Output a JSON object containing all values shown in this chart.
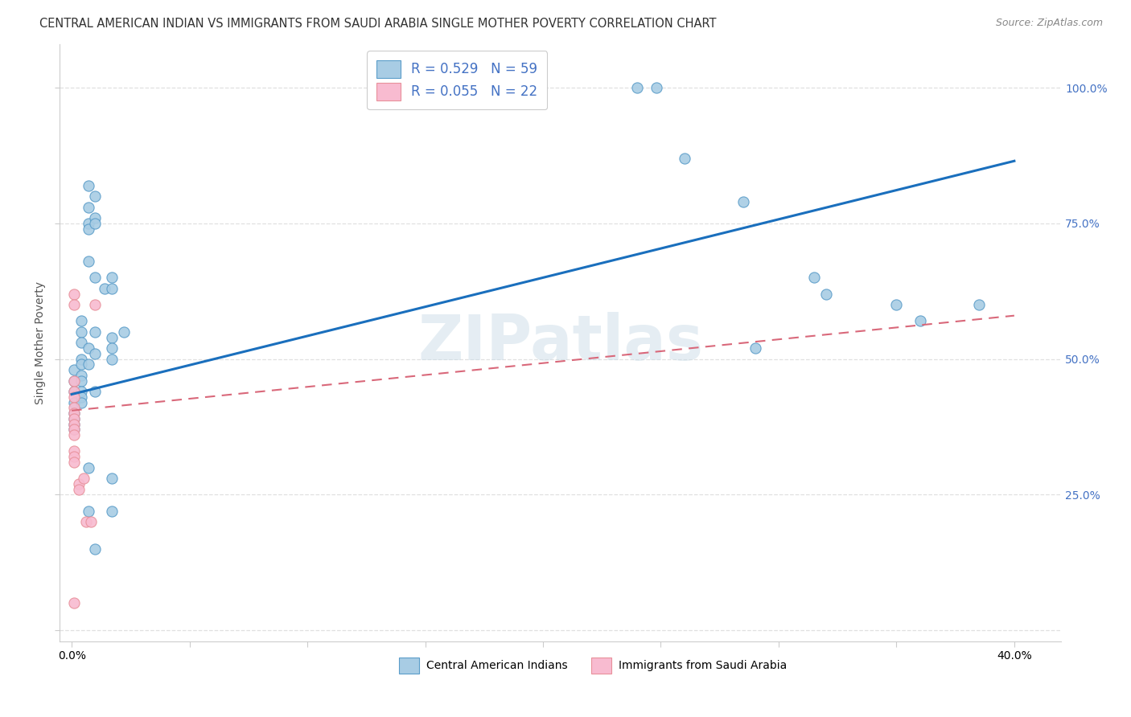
{
  "title": "CENTRAL AMERICAN INDIAN VS IMMIGRANTS FROM SAUDI ARABIA SINGLE MOTHER POVERTY CORRELATION CHART",
  "source": "Source: ZipAtlas.com",
  "ylabel": "Single Mother Poverty",
  "ylabel_right_ticks": [
    "100.0%",
    "75.0%",
    "50.0%",
    "25.0%"
  ],
  "ylabel_right_vals": [
    1.0,
    0.75,
    0.5,
    0.25
  ],
  "watermark": "ZIPatlas",
  "legend_r1": "R = 0.529",
  "legend_n1": "N = 59",
  "legend_r2": "R = 0.055",
  "legend_n2": "N = 22",
  "label_blue": "Central American Indians",
  "label_pink": "Immigrants from Saudi Arabia",
  "blue_color": "#a8cce4",
  "pink_color": "#f8bbd0",
  "blue_edge_color": "#5b9dc9",
  "pink_edge_color": "#e8909a",
  "blue_line_color": "#1a6fbd",
  "pink_line_color": "#d9687a",
  "blue_scatter": [
    [
      0.001,
      0.44
    ],
    [
      0.001,
      0.42
    ],
    [
      0.001,
      0.4
    ],
    [
      0.001,
      0.39
    ],
    [
      0.001,
      0.38
    ],
    [
      0.001,
      0.37
    ],
    [
      0.001,
      0.46
    ],
    [
      0.001,
      0.48
    ],
    [
      0.004,
      0.57
    ],
    [
      0.004,
      0.55
    ],
    [
      0.004,
      0.53
    ],
    [
      0.004,
      0.5
    ],
    [
      0.004,
      0.49
    ],
    [
      0.004,
      0.47
    ],
    [
      0.004,
      0.46
    ],
    [
      0.004,
      0.44
    ],
    [
      0.004,
      0.43
    ],
    [
      0.004,
      0.42
    ],
    [
      0.007,
      0.82
    ],
    [
      0.007,
      0.78
    ],
    [
      0.007,
      0.75
    ],
    [
      0.007,
      0.74
    ],
    [
      0.007,
      0.68
    ],
    [
      0.007,
      0.52
    ],
    [
      0.007,
      0.49
    ],
    [
      0.007,
      0.3
    ],
    [
      0.007,
      0.22
    ],
    [
      0.01,
      0.8
    ],
    [
      0.01,
      0.76
    ],
    [
      0.01,
      0.75
    ],
    [
      0.01,
      0.65
    ],
    [
      0.01,
      0.55
    ],
    [
      0.01,
      0.51
    ],
    [
      0.01,
      0.44
    ],
    [
      0.01,
      0.15
    ],
    [
      0.014,
      0.63
    ],
    [
      0.017,
      0.65
    ],
    [
      0.017,
      0.63
    ],
    [
      0.017,
      0.54
    ],
    [
      0.017,
      0.52
    ],
    [
      0.017,
      0.5
    ],
    [
      0.017,
      0.28
    ],
    [
      0.017,
      0.22
    ],
    [
      0.022,
      0.55
    ],
    [
      0.24,
      1.0
    ],
    [
      0.248,
      1.0
    ],
    [
      0.26,
      0.87
    ],
    [
      0.285,
      0.79
    ],
    [
      0.29,
      0.52
    ],
    [
      0.315,
      0.65
    ],
    [
      0.32,
      0.62
    ],
    [
      0.35,
      0.6
    ],
    [
      0.36,
      0.57
    ],
    [
      0.385,
      0.6
    ]
  ],
  "pink_scatter": [
    [
      0.001,
      0.62
    ],
    [
      0.001,
      0.6
    ],
    [
      0.001,
      0.46
    ],
    [
      0.001,
      0.44
    ],
    [
      0.001,
      0.43
    ],
    [
      0.001,
      0.41
    ],
    [
      0.001,
      0.4
    ],
    [
      0.001,
      0.39
    ],
    [
      0.001,
      0.38
    ],
    [
      0.001,
      0.37
    ],
    [
      0.001,
      0.36
    ],
    [
      0.001,
      0.33
    ],
    [
      0.001,
      0.32
    ],
    [
      0.001,
      0.31
    ],
    [
      0.003,
      0.27
    ],
    [
      0.003,
      0.26
    ],
    [
      0.005,
      0.28
    ],
    [
      0.006,
      0.2
    ],
    [
      0.008,
      0.2
    ],
    [
      0.01,
      0.6
    ],
    [
      0.001,
      0.05
    ]
  ],
  "blue_trendline": [
    [
      0.0,
      0.435
    ],
    [
      0.4,
      0.865
    ]
  ],
  "pink_trendline": [
    [
      0.0,
      0.405
    ],
    [
      0.4,
      0.58
    ]
  ],
  "xlim": [
    -0.005,
    0.42
  ],
  "ylim": [
    -0.02,
    1.08
  ],
  "grid_color": "#e0e0e0",
  "grid_style": "--",
  "background_color": "#ffffff",
  "title_fontsize": 10.5,
  "source_fontsize": 9,
  "tick_color": "#4472c4",
  "axis_label_color": "#555555"
}
